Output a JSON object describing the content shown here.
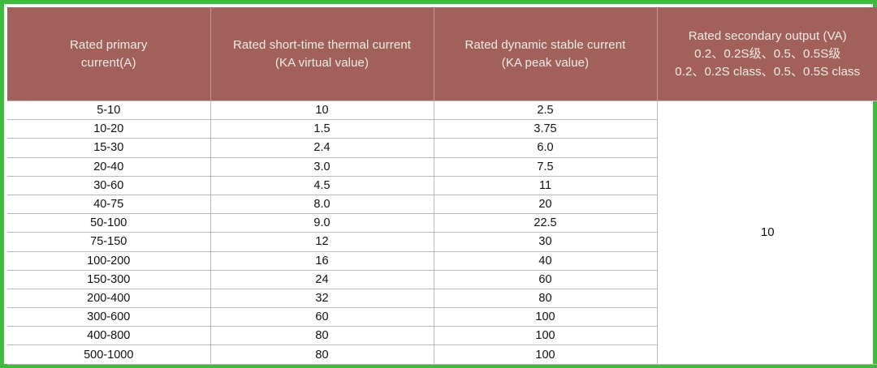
{
  "table": {
    "headers": [
      {
        "lines": [
          "Rated primary",
          "current(A)"
        ]
      },
      {
        "lines": [
          "Rated short-time thermal current",
          "(KA virtual  value)"
        ]
      },
      {
        "lines": [
          "Rated  dynamic  stable  current",
          "(KA  peak value)"
        ]
      },
      {
        "lines": [
          "Rated secondary output (VA)",
          "0.2、0.2S级、0.5、0.5S级",
          "0.2、0.2S class、0.5、0.5S class"
        ]
      }
    ],
    "rows": [
      {
        "primary": "5-10",
        "thermal": "10",
        "dynamic": "2.5"
      },
      {
        "primary": "10-20",
        "thermal": "1.5",
        "dynamic": "3.75"
      },
      {
        "primary": "15-30",
        "thermal": "2.4",
        "dynamic": "6.0"
      },
      {
        "primary": "20-40",
        "thermal": "3.0",
        "dynamic": "7.5"
      },
      {
        "primary": "30-60",
        "thermal": "4.5",
        "dynamic": "11"
      },
      {
        "primary": "40-75",
        "thermal": "8.0",
        "dynamic": "20"
      },
      {
        "primary": "50-100",
        "thermal": "9.0",
        "dynamic": "22.5"
      },
      {
        "primary": "75-150",
        "thermal": "12",
        "dynamic": "30"
      },
      {
        "primary": "100-200",
        "thermal": "16",
        "dynamic": "40"
      },
      {
        "primary": "150-300",
        "thermal": "24",
        "dynamic": "60"
      },
      {
        "primary": "200-400",
        "thermal": "32",
        "dynamic": "80"
      },
      {
        "primary": "300-600",
        "thermal": "60",
        "dynamic": "100"
      },
      {
        "primary": "400-800",
        "thermal": "80",
        "dynamic": "100"
      },
      {
        "primary": "500-1000",
        "thermal": "80",
        "dynamic": "100"
      }
    ],
    "secondary_output_value": "10"
  },
  "colors": {
    "header_bg": "#a1615a",
    "header_text": "#f4ebe8",
    "frame_border": "#3fba3f",
    "grid_line": "#b9b9b9"
  }
}
